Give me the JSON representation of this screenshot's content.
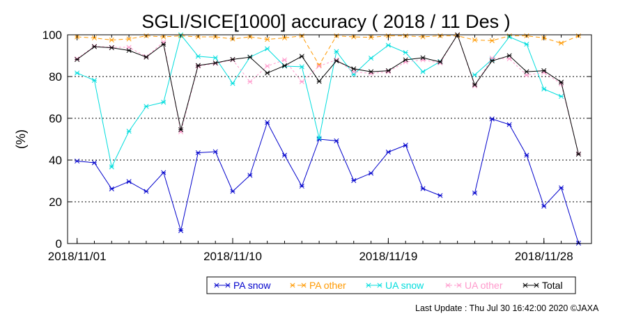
{
  "chart_data": {
    "type": "line",
    "title": "SGLI/SICE[1000] accuracy ( 2018 / 11 Des )",
    "xlabel": "",
    "ylabel": "(%)",
    "ylim": [
      0,
      100
    ],
    "yticks": [
      "0",
      "20",
      "40",
      "60",
      "80",
      "100"
    ],
    "xticks": [
      {
        "day": 1,
        "label": "2018/11/01"
      },
      {
        "day": 10,
        "label": "2018/11/10"
      },
      {
        "day": 19,
        "label": "2018/11/19"
      },
      {
        "day": 28,
        "label": "2018/11/28"
      }
    ],
    "x": [
      "2018-11-01",
      "2018-11-02",
      "2018-11-03",
      "2018-11-04",
      "2018-11-05",
      "2018-11-06",
      "2018-11-07",
      "2018-11-08",
      "2018-11-09",
      "2018-11-10",
      "2018-11-11",
      "2018-11-12",
      "2018-11-13",
      "2018-11-14",
      "2018-11-15",
      "2018-11-16",
      "2018-11-17",
      "2018-11-18",
      "2018-11-19",
      "2018-11-20",
      "2018-11-21",
      "2018-11-22",
      "2018-11-23",
      "2018-11-24",
      "2018-11-25",
      "2018-11-26",
      "2018-11-27",
      "2018-11-28",
      "2018-11-29",
      "2018-11-30"
    ],
    "days": [
      1,
      2,
      3,
      4,
      5,
      6,
      7,
      8,
      9,
      10,
      11,
      12,
      13,
      14,
      15,
      16,
      17,
      18,
      19,
      20,
      21,
      22,
      23,
      24,
      25,
      26,
      27,
      28,
      29,
      30
    ],
    "grid": "horizontal dashed",
    "legend_position": "bottom",
    "series": [
      {
        "name": "PA snow",
        "color": "#0000cc",
        "dash": "solid",
        "values": [
          39.5,
          38.7,
          26.2,
          29.7,
          25.0,
          34.0,
          6.2,
          43.5,
          44.0,
          25.0,
          32.7,
          58.0,
          42.3,
          27.5,
          50.0,
          49.2,
          30.2,
          33.7,
          43.8,
          47.1,
          26.3,
          23.0,
          null,
          24.2,
          59.7,
          57.0,
          42.3,
          17.9,
          26.7,
          0.2
        ]
      },
      {
        "name": "PA other",
        "color": "#ff9900",
        "dash": "6,4",
        "values": [
          99.0,
          98.5,
          97.5,
          98.0,
          99.5,
          99.0,
          99.5,
          99.0,
          99.0,
          98.0,
          99.0,
          97.8,
          98.5,
          99.5,
          85.5,
          99.5,
          99.0,
          98.8,
          99.5,
          99.5,
          99.0,
          99.5,
          99.5,
          97.5,
          97.2,
          99.5,
          99.5,
          98.5,
          96.0,
          99.5
        ]
      },
      {
        "name": "UA snow",
        "color": "#00dddd",
        "dash": "solid",
        "values": [
          81.7,
          78.2,
          36.7,
          53.8,
          65.7,
          67.7,
          100.0,
          89.7,
          89.0,
          76.7,
          89.3,
          93.3,
          85.0,
          84.7,
          50.5,
          92.0,
          81.0,
          88.8,
          95.0,
          91.5,
          82.3,
          87.2,
          null,
          80.8,
          88.2,
          99.0,
          95.5,
          74.0,
          70.5,
          null
        ]
      },
      {
        "name": "UA other",
        "color": "#ff99cc",
        "dash": "3,3",
        "values": [
          88.5,
          94.5,
          94.0,
          94.0,
          89.5,
          96.5,
          53.5,
          85.0,
          86.3,
          88.0,
          77.5,
          85.0,
          88.0,
          77.5,
          85.0,
          88.0,
          82.3,
          81.5,
          82.3,
          87.0,
          88.0,
          86.5,
          100.0,
          75.5,
          88.8,
          88.5,
          80.7,
          82.0,
          76.5,
          43.0
        ]
      },
      {
        "name": "Total",
        "color": "#000000",
        "dash": "solid",
        "values": [
          88.2,
          94.3,
          93.8,
          92.5,
          89.3,
          95.5,
          54.5,
          85.3,
          86.5,
          88.2,
          89.3,
          81.7,
          85.2,
          89.7,
          77.7,
          87.5,
          83.7,
          82.3,
          82.8,
          88.0,
          89.0,
          87.0,
          100.0,
          76.0,
          87.5,
          90.0,
          82.3,
          82.8,
          77.3,
          42.8
        ]
      }
    ]
  },
  "footer": {
    "last_update": "Last Update : Thu Jul 30 16:42:00 2020  ©JAXA"
  }
}
